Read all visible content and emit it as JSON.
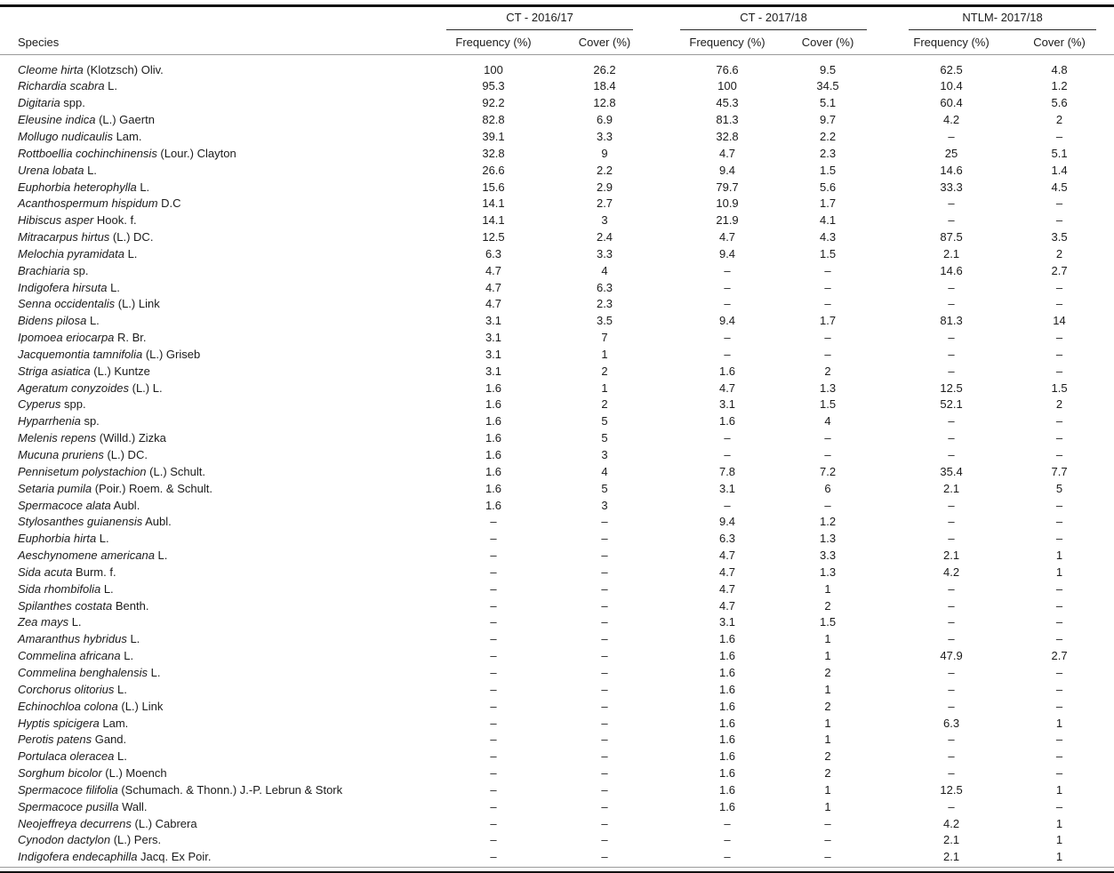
{
  "table": {
    "species_header": "Species",
    "groups": [
      {
        "label": "CT - 2016/17"
      },
      {
        "label": "CT - 2017/18"
      },
      {
        "label": "NTLM- 2017/18"
      }
    ],
    "sub_headers": [
      "Frequency (%)",
      "Cover (%)"
    ],
    "na_symbol": "–",
    "rows": [
      {
        "species_italic": "Cleome hirta",
        "species_roman": "(Klotzsch) Oliv.",
        "values": [
          "100",
          "26.2",
          "76.6",
          "9.5",
          "62.5",
          "4.8"
        ]
      },
      {
        "species_italic": "Richardia scabra",
        "species_roman": "L.",
        "values": [
          "95.3",
          "18.4",
          "100",
          "34.5",
          "10.4",
          "1.2"
        ]
      },
      {
        "species_italic": "Digitaria",
        "species_roman": "spp.",
        "values": [
          "92.2",
          "12.8",
          "45.3",
          "5.1",
          "60.4",
          "5.6"
        ]
      },
      {
        "species_italic": "Eleusine indica",
        "species_roman": "(L.) Gaertn",
        "values": [
          "82.8",
          "6.9",
          "81.3",
          "9.7",
          "4.2",
          "2"
        ]
      },
      {
        "species_italic": "Mollugo nudicaulis",
        "species_roman": "Lam.",
        "values": [
          "39.1",
          "3.3",
          "32.8",
          "2.2",
          "–",
          "–"
        ]
      },
      {
        "species_italic": "Rottboellia cochinchinensis",
        "species_roman": "(Lour.) Clayton",
        "values": [
          "32.8",
          "9",
          "4.7",
          "2.3",
          "25",
          "5.1"
        ]
      },
      {
        "species_italic": "Urena lobata",
        "species_roman": "L.",
        "values": [
          "26.6",
          "2.2",
          "9.4",
          "1.5",
          "14.6",
          "1.4"
        ]
      },
      {
        "species_italic": "Euphorbia heterophylla",
        "species_roman": "L.",
        "values": [
          "15.6",
          "2.9",
          "79.7",
          "5.6",
          "33.3",
          "4.5"
        ]
      },
      {
        "species_italic": "Acanthospermum hispidum",
        "species_roman": "D.C",
        "values": [
          "14.1",
          "2.7",
          "10.9",
          "1.7",
          "–",
          "–"
        ]
      },
      {
        "species_italic": "Hibiscus asper",
        "species_roman": "Hook. f.",
        "values": [
          "14.1",
          "3",
          "21.9",
          "4.1",
          "–",
          "–"
        ]
      },
      {
        "species_italic": "Mitracarpus hirtus",
        "species_roman": "(L.) DC.",
        "values": [
          "12.5",
          "2.4",
          "4.7",
          "4.3",
          "87.5",
          "3.5"
        ]
      },
      {
        "species_italic": "Melochia pyramidata",
        "species_roman": "L.",
        "values": [
          "6.3",
          "3.3",
          "9.4",
          "1.5",
          "2.1",
          "2"
        ]
      },
      {
        "species_italic": "Brachiaria",
        "species_roman": "sp.",
        "values": [
          "4.7",
          "4",
          "–",
          "–",
          "14.6",
          "2.7"
        ]
      },
      {
        "species_italic": "Indigofera hirsuta",
        "species_roman": "L.",
        "values": [
          "4.7",
          "6.3",
          "–",
          "–",
          "–",
          "–"
        ]
      },
      {
        "species_italic": "Senna occidentalis",
        "species_roman": "(L.) Link",
        "values": [
          "4.7",
          "2.3",
          "–",
          "–",
          "–",
          "–"
        ]
      },
      {
        "species_italic": "Bidens pilosa",
        "species_roman": "L.",
        "values": [
          "3.1",
          "3.5",
          "9.4",
          "1.7",
          "81.3",
          "14"
        ]
      },
      {
        "species_italic": "Ipomoea eriocarpa",
        "species_roman": "R. Br.",
        "values": [
          "3.1",
          "7",
          "–",
          "–",
          "–",
          "–"
        ]
      },
      {
        "species_italic": "Jacquemontia tamnifolia",
        "species_roman": "(L.) Griseb",
        "values": [
          "3.1",
          "1",
          "–",
          "–",
          "–",
          "–"
        ]
      },
      {
        "species_italic": "Striga asiatica",
        "species_roman": "(L.) Kuntze",
        "values": [
          "3.1",
          "2",
          "1.6",
          "2",
          "–",
          "–"
        ]
      },
      {
        "species_italic": "Ageratum conyzoides",
        "species_roman": "(L.) L.",
        "values": [
          "1.6",
          "1",
          "4.7",
          "1.3",
          "12.5",
          "1.5"
        ]
      },
      {
        "species_italic": "Cyperus",
        "species_roman": "spp.",
        "values": [
          "1.6",
          "2",
          "3.1",
          "1.5",
          "52.1",
          "2"
        ]
      },
      {
        "species_italic": "Hyparrhenia",
        "species_roman": "sp.",
        "values": [
          "1.6",
          "5",
          "1.6",
          "4",
          "–",
          "–"
        ]
      },
      {
        "species_italic": "Melenis repens",
        "species_roman": "(Willd.) Zizka",
        "values": [
          "1.6",
          "5",
          "–",
          "–",
          "–",
          "–"
        ]
      },
      {
        "species_italic": "Mucuna pruriens",
        "species_roman": "(L.) DC.",
        "values": [
          "1.6",
          "3",
          "–",
          "–",
          "–",
          "–"
        ]
      },
      {
        "species_italic": "Pennisetum polystachion",
        "species_roman": "(L.) Schult.",
        "values": [
          "1.6",
          "4",
          "7.8",
          "7.2",
          "35.4",
          "7.7"
        ]
      },
      {
        "species_italic": "Setaria pumila",
        "species_roman": "(Poir.) Roem. & Schult.",
        "values": [
          "1.6",
          "5",
          "3.1",
          "6",
          "2.1",
          "5"
        ]
      },
      {
        "species_italic": "Spermacoce alata",
        "species_roman": "Aubl.",
        "values": [
          "1.6",
          "3",
          "–",
          "–",
          "–",
          "–"
        ]
      },
      {
        "species_italic": "Stylosanthes guianensis",
        "species_roman": "Aubl.",
        "values": [
          "–",
          "–",
          "9.4",
          "1.2",
          "–",
          "–"
        ]
      },
      {
        "species_italic": "Euphorbia hirta",
        "species_roman": "L.",
        "values": [
          "–",
          "–",
          "6.3",
          "1.3",
          "–",
          "–"
        ]
      },
      {
        "species_italic": "Aeschynomene americana",
        "species_roman": "L.",
        "values": [
          "–",
          "–",
          "4.7",
          "3.3",
          "2.1",
          "1"
        ]
      },
      {
        "species_italic": "Sida acuta",
        "species_roman": "Burm. f.",
        "values": [
          "–",
          "–",
          "4.7",
          "1.3",
          "4.2",
          "1"
        ]
      },
      {
        "species_italic": "Sida rhombifolia",
        "species_roman": "L.",
        "values": [
          "–",
          "–",
          "4.7",
          "1",
          "–",
          "–"
        ]
      },
      {
        "species_italic": "Spilanthes costata",
        "species_roman": "Benth.",
        "values": [
          "–",
          "–",
          "4.7",
          "2",
          "–",
          "–"
        ]
      },
      {
        "species_italic": "Zea mays",
        "species_roman": "L.",
        "values": [
          "–",
          "–",
          "3.1",
          "1.5",
          "–",
          "–"
        ]
      },
      {
        "species_italic": "Amaranthus hybridus",
        "species_roman": "L.",
        "values": [
          "–",
          "–",
          "1.6",
          "1",
          "–",
          "–"
        ]
      },
      {
        "species_italic": "Commelina africana",
        "species_roman": "L.",
        "values": [
          "–",
          "–",
          "1.6",
          "1",
          "47.9",
          "2.7"
        ]
      },
      {
        "species_italic": "Commelina benghalensis",
        "species_roman": "L.",
        "values": [
          "–",
          "–",
          "1.6",
          "2",
          "–",
          "–"
        ]
      },
      {
        "species_italic": "Corchorus olitorius",
        "species_roman": "L.",
        "values": [
          "–",
          "–",
          "1.6",
          "1",
          "–",
          "–"
        ]
      },
      {
        "species_italic": "Echinochloa colona",
        "species_roman": "(L.) Link",
        "values": [
          "–",
          "–",
          "1.6",
          "2",
          "–",
          "–"
        ]
      },
      {
        "species_italic": "Hyptis spicigera",
        "species_roman": "Lam.",
        "values": [
          "–",
          "–",
          "1.6",
          "1",
          "6.3",
          "1"
        ]
      },
      {
        "species_italic": "Perotis patens",
        "species_roman": "Gand.",
        "values": [
          "–",
          "–",
          "1.6",
          "1",
          "–",
          "–"
        ]
      },
      {
        "species_italic": "Portulaca oleracea",
        "species_roman": "L.",
        "values": [
          "–",
          "–",
          "1.6",
          "2",
          "–",
          "–"
        ]
      },
      {
        "species_italic": "Sorghum bicolor",
        "species_roman": "(L.) Moench",
        "values": [
          "–",
          "–",
          "1.6",
          "2",
          "–",
          "–"
        ]
      },
      {
        "species_italic": "Spermacoce filifolia",
        "species_roman": "(Schumach. & Thonn.) J.-P. Lebrun & Stork",
        "values": [
          "–",
          "–",
          "1.6",
          "1",
          "12.5",
          "1"
        ]
      },
      {
        "species_italic": "Spermacoce pusilla",
        "species_roman": "Wall.",
        "values": [
          "–",
          "–",
          "1.6",
          "1",
          "–",
          "–"
        ]
      },
      {
        "species_italic": "Neojeffreya decurrens",
        "species_roman": "(L.) Cabrera",
        "values": [
          "–",
          "–",
          "–",
          "–",
          "4.2",
          "1"
        ]
      },
      {
        "species_italic": "Cynodon dactylon",
        "species_roman": "(L.) Pers.",
        "values": [
          "–",
          "–",
          "–",
          "–",
          "2.1",
          "1"
        ]
      },
      {
        "species_italic": "Indigofera endecaphilla",
        "species_roman": "Jacq. Ex Poir.",
        "values": [
          "–",
          "–",
          "–",
          "–",
          "2.1",
          "1"
        ]
      }
    ]
  }
}
